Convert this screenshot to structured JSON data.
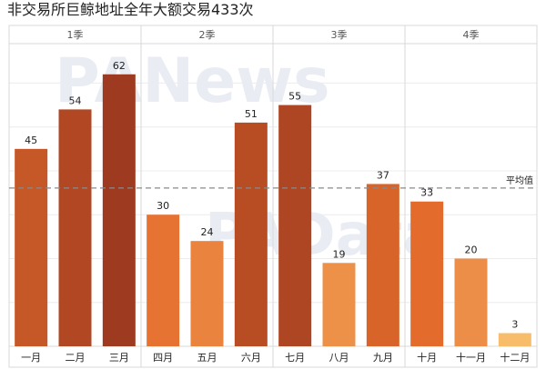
{
  "title": "非交易所巨鲸地址全年大额交易433次",
  "watermarks": [
    "PANews",
    "PAData"
  ],
  "colors": {
    "background": "#ffffff",
    "panel_border": "#d9d9d9",
    "grid": "#ececec",
    "avg_line": "#8a8a8a",
    "label_text": "#222222",
    "quarter_text": "#555555"
  },
  "chart_data": {
    "type": "bar",
    "title": "非交易所巨鲸地址全年大额交易433次",
    "xlabel": "",
    "ylabel": "",
    "ylim": [
      0,
      70
    ],
    "grid": true,
    "average": {
      "label": "平均值",
      "value": 36.08
    },
    "groups": [
      {
        "name": "1季",
        "categories": [
          "一月",
          "二月",
          "三月"
        ],
        "values": [
          45,
          54,
          62
        ]
      },
      {
        "name": "2季",
        "categories": [
          "四月",
          "五月",
          "六月"
        ],
        "values": [
          30,
          24,
          51
        ]
      },
      {
        "name": "3季",
        "categories": [
          "七月",
          "八月",
          "九月"
        ],
        "values": [
          55,
          19,
          37
        ]
      },
      {
        "name": "4季",
        "categories": [
          "十月",
          "十一月",
          "十二月"
        ],
        "values": [
          33,
          20,
          3
        ]
      }
    ],
    "color_scale": {
      "low": "#f7bd6b",
      "mid": "#e46c2c",
      "high": "#9e3a20",
      "min_value": 3,
      "max_value": 62
    }
  }
}
